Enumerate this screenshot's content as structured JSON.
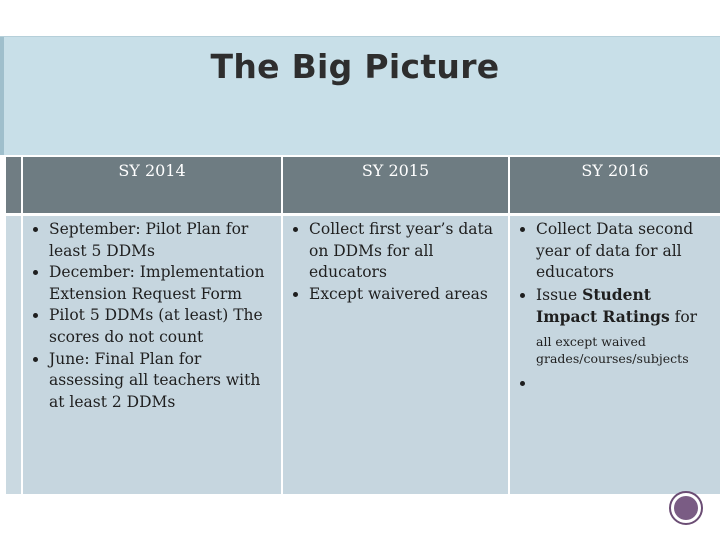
{
  "slide": {
    "title": "The Big Picture",
    "columns": [
      {
        "header": "SY 2014",
        "bullets": [
          "September: Pilot Plan for least 5 DDMs",
          "December: Implementation Extension Request Form",
          "Pilot 5 DDMs (at least) The scores do not count",
          "June: Final Plan for assessing all teachers with at least 2 DDMs"
        ]
      },
      {
        "header": "SY 2015",
        "bullets": [
          "Collect first year’s data on DDMs for all educators",
          "Except waivered areas"
        ]
      },
      {
        "header": "SY 2016",
        "bullet1": "Collect Data second year of data for all educators",
        "bullet2_prefix": "Issue ",
        "bullet2_bold": "Student Impact Ratings",
        "bullet2_suffix": " for",
        "bullet3": "all except waived grades/courses/subjects"
      }
    ]
  },
  "colors": {
    "title_band": "#c8dfe8",
    "header_cell": "#6e7c82",
    "body_cell": "#c6d6df",
    "nav_button": "#7a5c84"
  },
  "icons": {
    "nav_button": "circle-nav-icon"
  }
}
